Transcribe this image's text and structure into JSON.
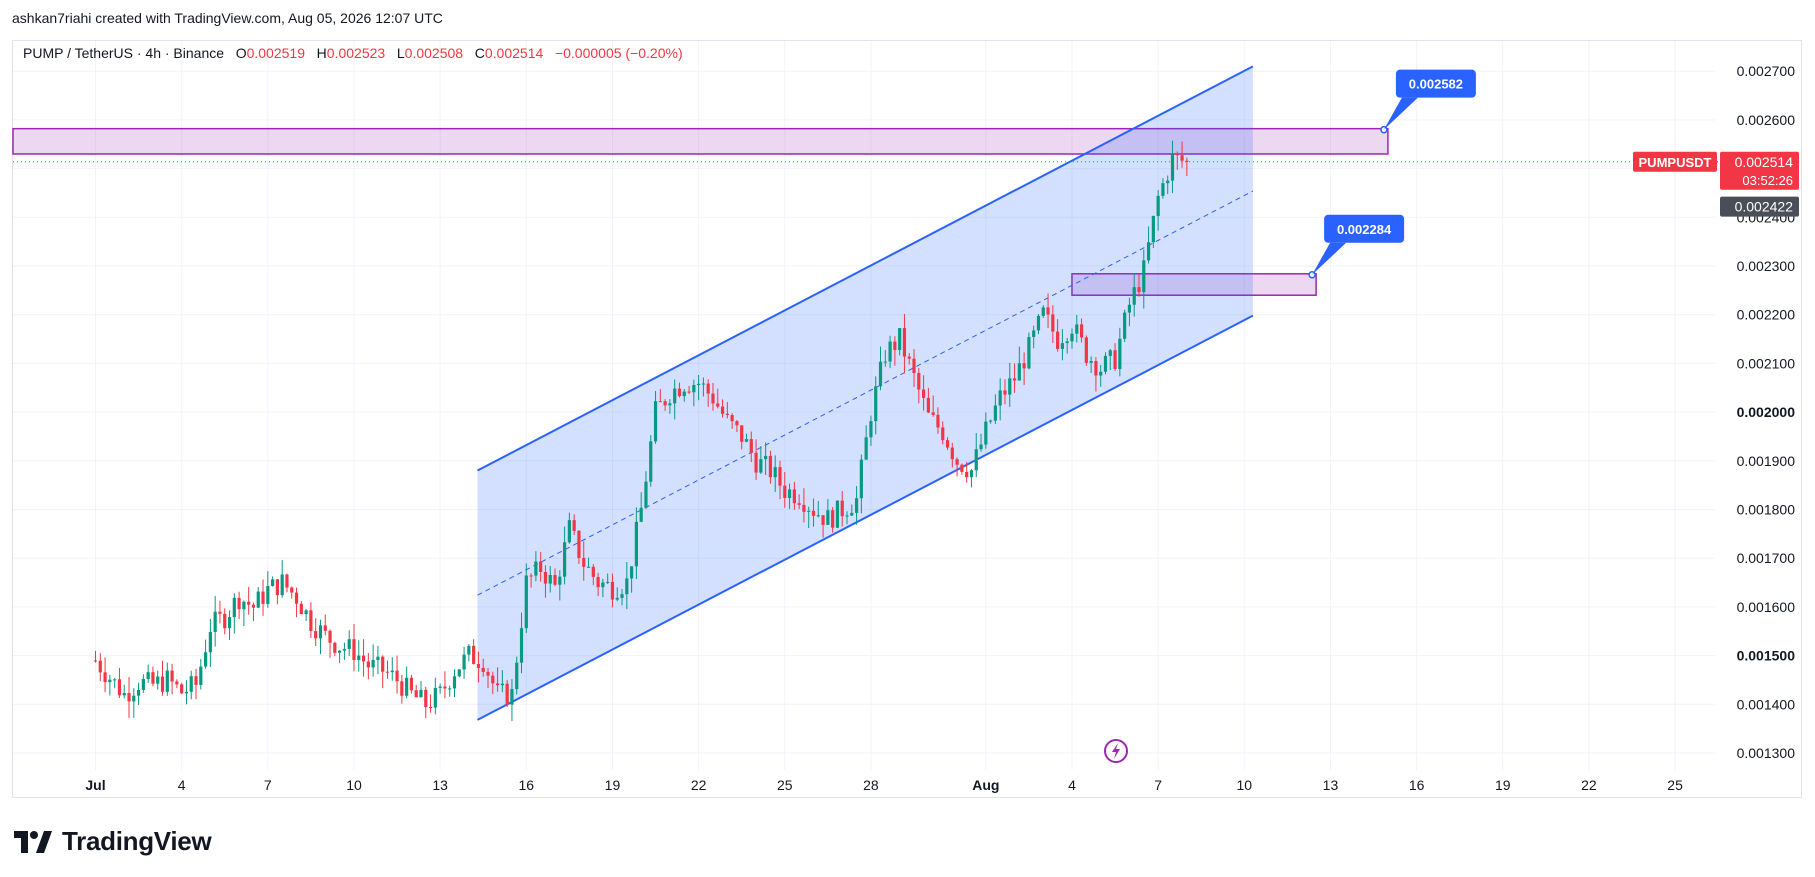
{
  "header": {
    "author_line": "ashkan7riahi created with TradingView.com, Aug 05, 2026 12:07 UTC"
  },
  "legend": {
    "symbol": "PUMP / TetherUS · 4h · Binance",
    "o_label": "O",
    "o_value": "0.002519",
    "h_label": "H",
    "h_value": "0.002523",
    "l_label": "L",
    "l_value": "0.002508",
    "c_label": "C",
    "c_value": "0.002514",
    "change": "−0.000005 (−0.20%)"
  },
  "branding": {
    "name": "TradingView"
  },
  "colors": {
    "up": "#089981",
    "down": "#f23645",
    "channel": "#2962ff",
    "zone": "#9c27b0",
    "last_price": "#f23645",
    "callout": "#2962ff"
  },
  "chart_data": {
    "type": "candlestick",
    "symbol": "PUMPUSDT",
    "timeframe": "4h",
    "y_axis": {
      "ticks": [
        "0.002700",
        "0.002600",
        "0.002500",
        "0.002400",
        "0.002300",
        "0.002200",
        "0.002100",
        "0.002000",
        "0.001900",
        "0.001800",
        "0.001700",
        "0.001600",
        "0.001500",
        "0.001400",
        "0.001300"
      ],
      "bold_ticks": [
        "0.002000",
        "0.001500"
      ],
      "ylim": [
        0.00126,
        0.00273
      ]
    },
    "x_axis": {
      "tick_labels": [
        "Jul",
        "4",
        "7",
        "10",
        "13",
        "16",
        "19",
        "22",
        "25",
        "28",
        "Aug",
        "4",
        "7",
        "10",
        "13",
        "16",
        "19",
        "22",
        "25"
      ],
      "tick_day_index": [
        0,
        3,
        6,
        9,
        12,
        15,
        18,
        21,
        24,
        27,
        31,
        34,
        37,
        40,
        43,
        46,
        49,
        52,
        55
      ],
      "bold_labels": [
        "Jul",
        "Aug"
      ],
      "start_date": "Jul 1"
    },
    "last_price": {
      "symbol_label": "PUMPUSDT",
      "value": "0.002514",
      "countdown": "03:52:26",
      "price": 0.002514
    },
    "secondary_price": {
      "value": "0.002422",
      "price": 0.002422
    },
    "zones": [
      {
        "top": 0.002582,
        "bottom": 0.00253,
        "label": "0.002582",
        "from_day": -3,
        "to_day": 45.0
      },
      {
        "top": 0.002284,
        "bottom": 0.00224,
        "label": "0.002284",
        "from_day": 34.0,
        "to_day": 42.5
      }
    ],
    "channel": {
      "upper": [
        [
          13.3,
          0.00188
        ],
        [
          40.3,
          0.00271
        ]
      ],
      "lower": [
        [
          13.3,
          0.001368
        ],
        [
          40.3,
          0.002198
        ]
      ],
      "median_dashed": true
    },
    "close_path": [
      [
        0,
        0.00149
      ],
      [
        0.5,
        0.001455
      ],
      [
        1,
        0.00142
      ],
      [
        1.5,
        0.001445
      ],
      [
        2,
        0.00144
      ],
      [
        2.5,
        0.00145
      ],
      [
        3,
        0.001425
      ],
      [
        3.5,
        0.00144
      ],
      [
        4,
        0.00156
      ],
      [
        4.5,
        0.00158
      ],
      [
        5,
        0.00162
      ],
      [
        5.5,
        0.0016
      ],
      [
        6,
        0.001635
      ],
      [
        6.5,
        0.00165
      ],
      [
        7,
        0.00162
      ],
      [
        7.5,
        0.00157
      ],
      [
        8,
        0.00154
      ],
      [
        8.5,
        0.00152
      ],
      [
        9,
        0.00151
      ],
      [
        9.5,
        0.00148
      ],
      [
        10,
        0.00147
      ],
      [
        10.5,
        0.00145
      ],
      [
        11,
        0.00142
      ],
      [
        11.5,
        0.0014
      ],
      [
        12,
        0.00142
      ],
      [
        12.5,
        0.00147
      ],
      [
        13,
        0.0015
      ],
      [
        13.5,
        0.00149
      ],
      [
        14,
        0.00142
      ],
      [
        14.5,
        0.00142
      ],
      [
        15,
        0.00165
      ],
      [
        15.5,
        0.00168
      ],
      [
        16,
        0.00164
      ],
      [
        16.5,
        0.00176
      ],
      [
        17,
        0.00169
      ],
      [
        17.5,
        0.00165
      ],
      [
        18,
        0.00164
      ],
      [
        18.5,
        0.00165
      ],
      [
        19,
        0.0018
      ],
      [
        19.5,
        0.002
      ],
      [
        20,
        0.00204
      ],
      [
        20.5,
        0.00206
      ],
      [
        21,
        0.00206
      ],
      [
        21.5,
        0.00203
      ],
      [
        22,
        0.00198
      ],
      [
        22.5,
        0.00195
      ],
      [
        23,
        0.0019
      ],
      [
        23.5,
        0.00188
      ],
      [
        24,
        0.00184
      ],
      [
        24.5,
        0.00183
      ],
      [
        25,
        0.0018
      ],
      [
        25.5,
        0.00178
      ],
      [
        26,
        0.0018
      ],
      [
        26.5,
        0.00182
      ],
      [
        27,
        0.002
      ],
      [
        27.5,
        0.00212
      ],
      [
        28,
        0.00215
      ],
      [
        28.5,
        0.00207
      ],
      [
        29,
        0.00199
      ],
      [
        29.5,
        0.00196
      ],
      [
        30,
        0.0019
      ],
      [
        30.5,
        0.00188
      ],
      [
        31,
        0.00196
      ],
      [
        31.5,
        0.00203
      ],
      [
        32,
        0.00207
      ],
      [
        32.5,
        0.00213
      ],
      [
        33,
        0.0022
      ],
      [
        33.5,
        0.00215
      ],
      [
        34,
        0.00218
      ],
      [
        34.5,
        0.00212
      ],
      [
        35,
        0.00209
      ],
      [
        35.5,
        0.00211
      ],
      [
        36,
        0.00222
      ],
      [
        36.5,
        0.00229
      ],
      [
        37,
        0.00244
      ],
      [
        37.5,
        0.00252
      ],
      [
        38,
        0.002514
      ]
    ]
  }
}
